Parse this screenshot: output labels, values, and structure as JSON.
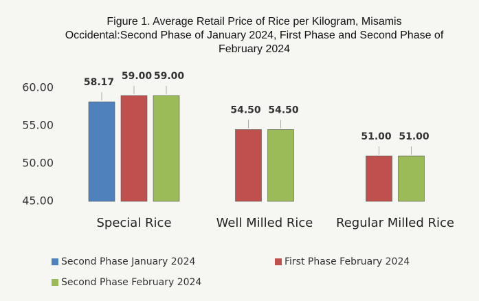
{
  "chart_data": {
    "type": "bar",
    "title": "Figure 1. Average Retail Price of Rice per Kilogram, Misamis Occidental:Second Phase of January 2024, First Phase and Second Phase of February 2024",
    "categories": [
      "Special Rice",
      "Well Milled Rice",
      "Regular Milled Rice"
    ],
    "series": [
      {
        "name": "Second Phase January 2024",
        "color": "#4f81bd",
        "values": [
          58.17,
          null,
          null
        ],
        "value_labels": [
          "58.17",
          null,
          null
        ]
      },
      {
        "name": "First Phase February 2024",
        "color": "#c0504d",
        "values": [
          59,
          54.5,
          51
        ],
        "value_labels": [
          "59.00",
          "54.50",
          "51.00"
        ]
      },
      {
        "name": "Second Phase February 2024",
        "color": "#9bbb59",
        "values": [
          59,
          54.5,
          51
        ],
        "value_labels": [
          "59.00",
          "54.50",
          "51.00"
        ]
      }
    ],
    "ylim": [
      45,
      62
    ],
    "yticks": [
      {
        "value": 45,
        "label": "45.00"
      },
      {
        "value": 50,
        "label": "50.00"
      },
      {
        "value": 55,
        "label": "55.00"
      },
      {
        "value": 60,
        "label": "60.00"
      }
    ],
    "grid": false,
    "legend": "bottom"
  }
}
